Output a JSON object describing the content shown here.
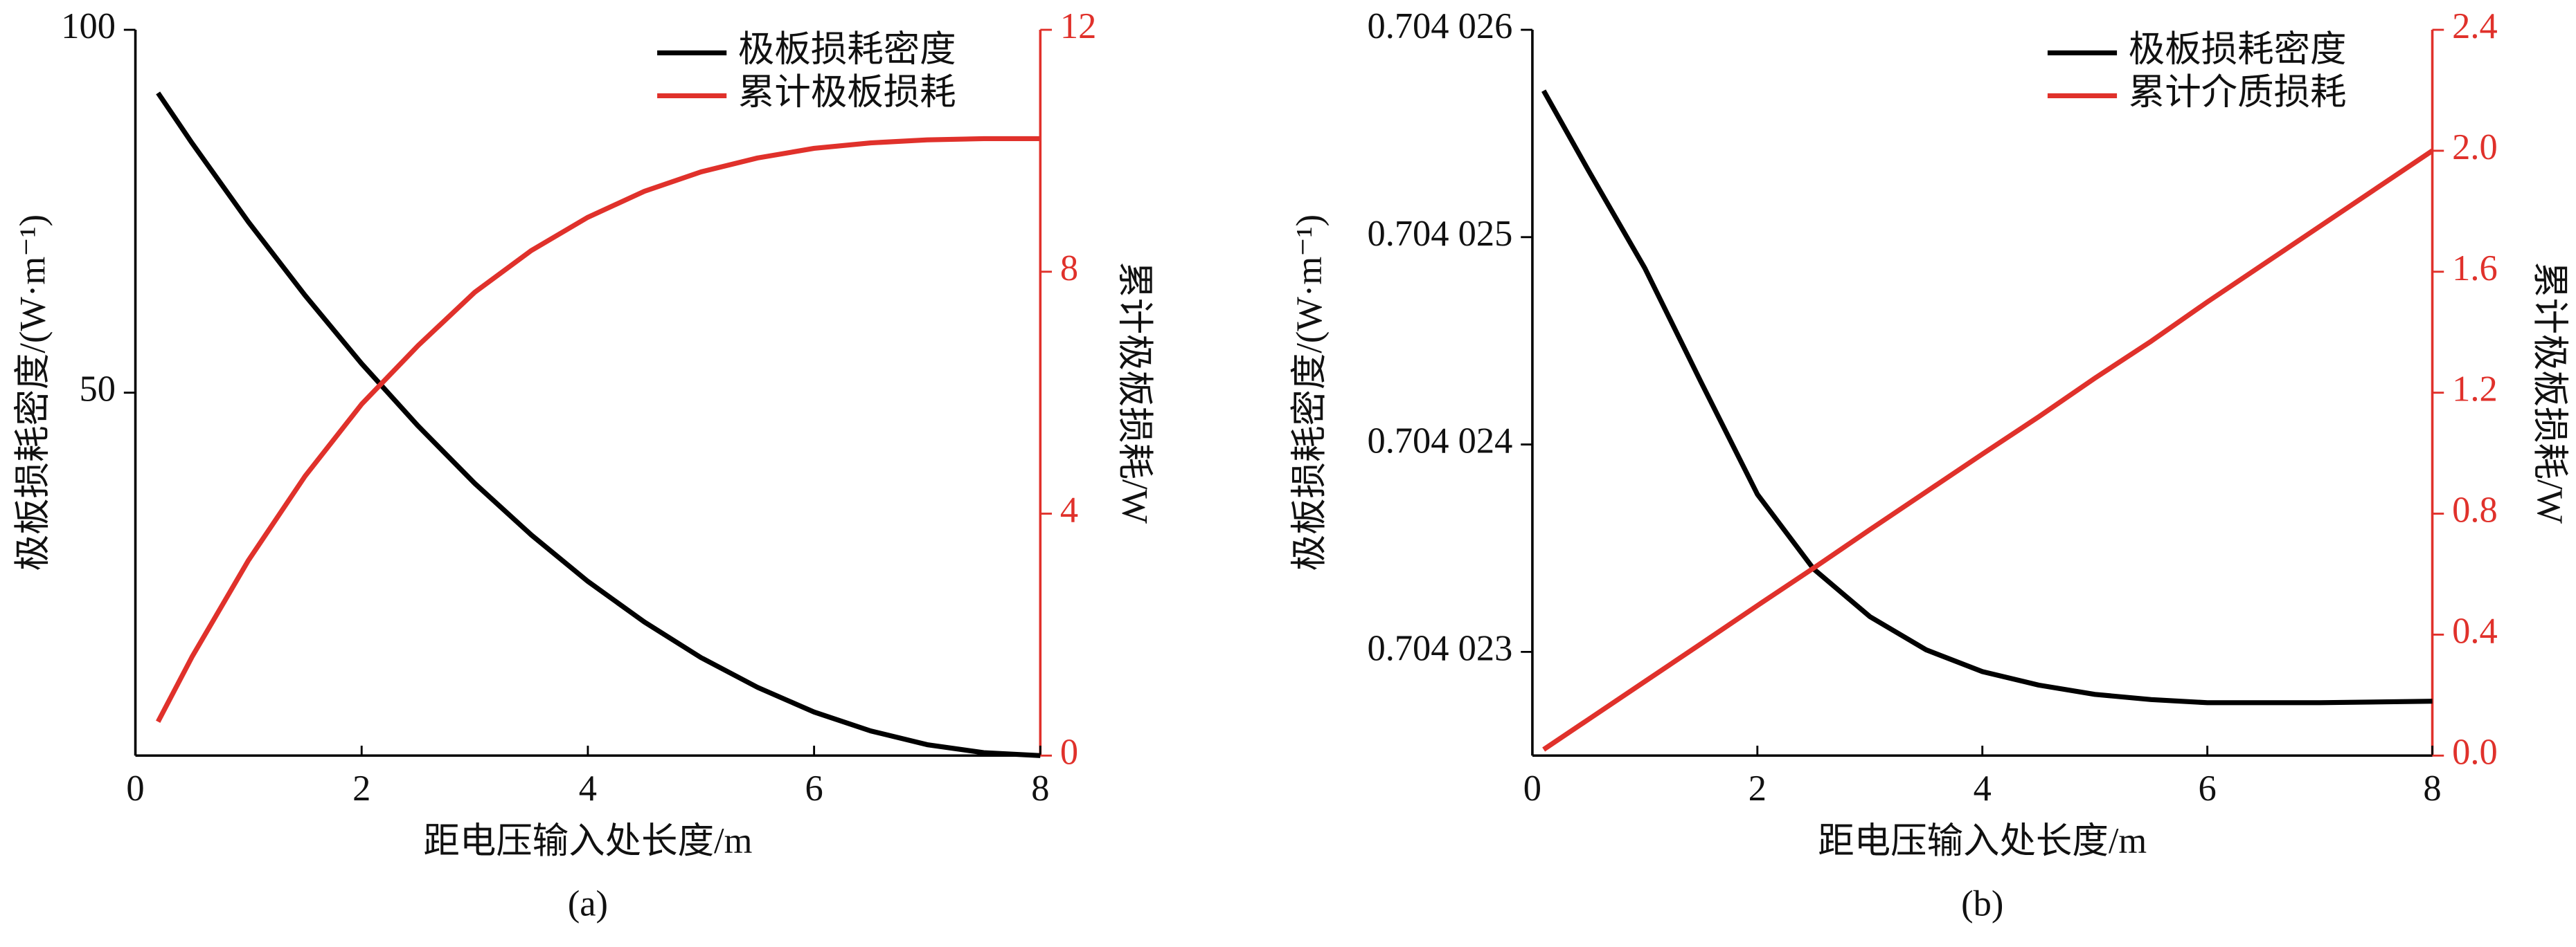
{
  "chart_data": [
    {
      "type": "line",
      "caption": "(a)",
      "xlabel": "距电压输入处长度/m",
      "ylabel": "极板损耗密度/(W·m⁻¹)",
      "y2label": "累计极板损耗/W",
      "x": [
        0.2,
        0.5,
        1,
        1.5,
        2,
        2.5,
        3,
        3.5,
        4,
        4.5,
        5,
        5.5,
        6,
        6.5,
        7,
        7.5,
        8
      ],
      "series": [
        {
          "name": "极板损耗密度",
          "color": "#000000",
          "values": [
            91.3,
            84.4,
            73.5,
            63.4,
            54.0,
            45.4,
            37.5,
            30.4,
            24.0,
            18.4,
            13.5,
            9.4,
            6.0,
            3.4,
            1.5,
            0.4,
            0
          ]
        },
        {
          "name": "累计极板损耗",
          "color": "#e0312b",
          "axis": "y2",
          "values": [
            0.56,
            1.63,
            3.23,
            4.62,
            5.81,
            6.78,
            7.66,
            8.35,
            8.9,
            9.33,
            9.65,
            9.88,
            10.04,
            10.13,
            10.18,
            10.2,
            10.2
          ]
        }
      ],
      "xlim": [
        0,
        8
      ],
      "xticks": [
        0,
        2,
        4,
        6,
        8
      ],
      "ylim": [
        0,
        100
      ],
      "yticks": [
        50,
        100
      ],
      "y2lim": [
        0,
        12
      ],
      "y2ticks": [
        0,
        4,
        8,
        12
      ],
      "legend": "upper right"
    },
    {
      "type": "line",
      "caption": "(b)",
      "xlabel": "距电压输入处长度/m",
      "ylabel": "极板损耗密度/(W·m⁻¹)",
      "y2label": "累计极板损耗/W",
      "x": [
        0.1,
        0.5,
        1,
        1.5,
        2,
        2.5,
        3,
        3.5,
        4,
        4.5,
        5,
        5.5,
        6,
        7,
        8
      ],
      "series": [
        {
          "name": "极板损耗密度",
          "color": "#000000",
          "values": [
            0.704025706,
            0.70402532,
            0.70402485,
            0.7040243,
            0.70402376,
            0.7040234,
            0.70402317,
            0.70402301,
            0.704022905,
            0.70402284,
            0.704022795,
            0.70402277,
            0.704022755,
            0.704022755,
            0.704022762
          ]
        },
        {
          "name": "累计介质损耗",
          "color": "#e0312b",
          "axis": "y2",
          "values": [
            0.02,
            0.12,
            0.245,
            0.37,
            0.496,
            0.62,
            0.747,
            0.872,
            0.997,
            1.12,
            1.248,
            1.37,
            1.5,
            1.75,
            2.0
          ]
        }
      ],
      "xlim": [
        0,
        8
      ],
      "xticks": [
        0,
        2,
        4,
        6,
        8
      ],
      "ylim": [
        0.7040225,
        0.704026
      ],
      "yticks": [
        {
          "value": 0.704023,
          "label": "0.704 023"
        },
        {
          "value": 0.704024,
          "label": "0.704 024"
        },
        {
          "value": 0.704025,
          "label": "0.704 025"
        },
        {
          "value": 0.704026,
          "label": "0.704 026"
        }
      ],
      "y2lim": [
        0,
        2.4
      ],
      "y2ticks": [
        {
          "value": 0,
          "label": "0.0"
        },
        0.4,
        0.8,
        1.2,
        1.6,
        {
          "value": 2,
          "label": "2.0"
        },
        2.4
      ],
      "legend": "upper right"
    }
  ]
}
